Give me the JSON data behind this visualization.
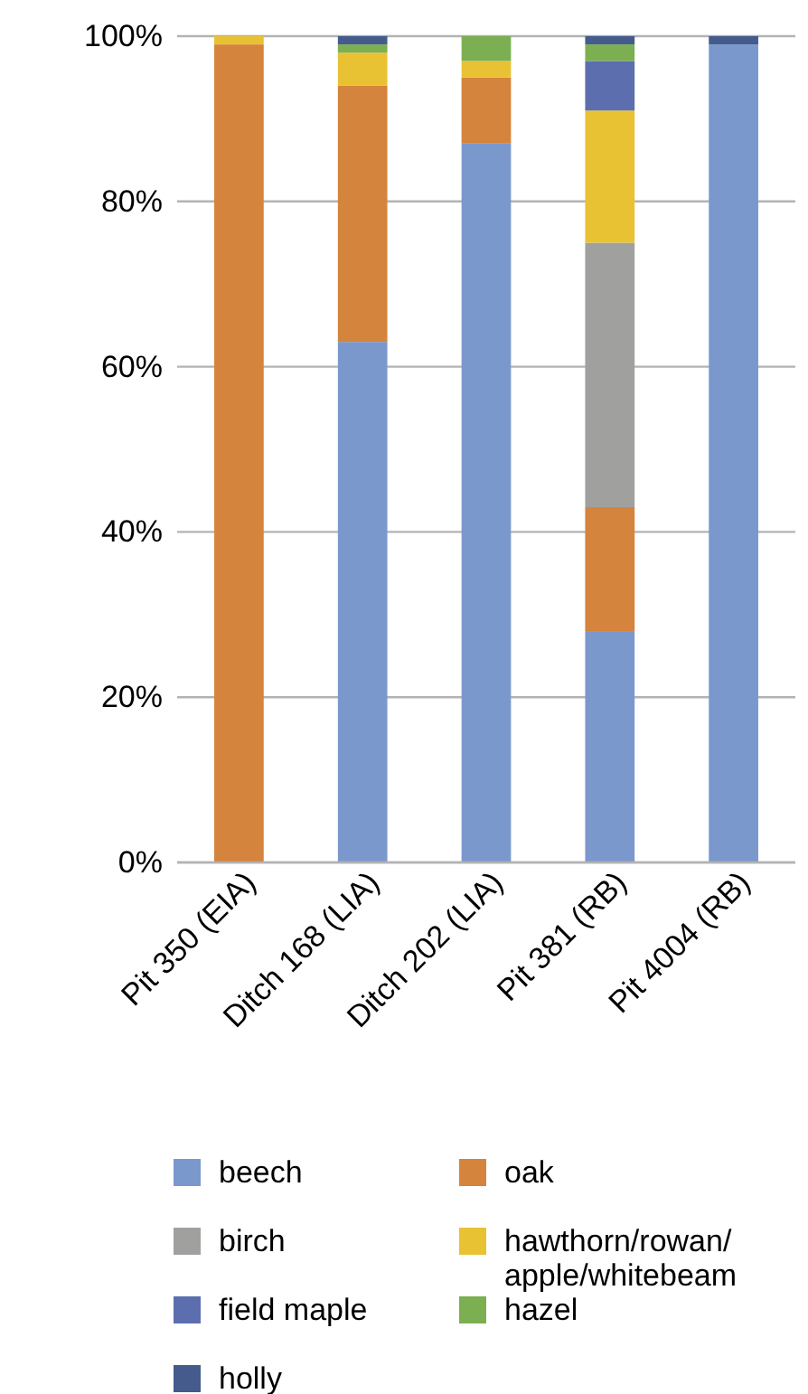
{
  "chart_data": {
    "type": "bar",
    "stacked": true,
    "categories": [
      "Pit 350 (EIA)",
      "Ditch 168 (LIA)",
      "Ditch 202 (LIA)",
      "Pit 381 (RB)",
      "Pit 4004 (RB)"
    ],
    "series": [
      {
        "name": "beech",
        "color": "#7b98cd",
        "values": [
          0,
          63,
          87,
          28,
          99
        ]
      },
      {
        "name": "oak",
        "color": "#d4843c",
        "values": [
          99,
          31,
          8,
          15,
          0
        ]
      },
      {
        "name": "birch",
        "color": "#a0a09f",
        "values": [
          0,
          0,
          0,
          32,
          0
        ]
      },
      {
        "name": "hawthorn/rowan/apple/whitebeam",
        "color": "#e8c233",
        "values": [
          1,
          4,
          2,
          16,
          0
        ]
      },
      {
        "name": "field maple",
        "color": "#5d6eae",
        "values": [
          0,
          0,
          0,
          6,
          0
        ]
      },
      {
        "name": "hazel",
        "color": "#7caf52",
        "values": [
          0,
          1,
          3,
          2,
          0
        ]
      },
      {
        "name": "holly",
        "color": "#445b8c",
        "values": [
          0,
          1,
          0,
          1,
          1
        ]
      }
    ],
    "ylim": [
      0,
      100
    ],
    "yticks": [
      {
        "value": 0,
        "label": "0%"
      },
      {
        "value": 20,
        "label": "20%"
      },
      {
        "value": 40,
        "label": "40%"
      },
      {
        "value": 60,
        "label": "60%"
      },
      {
        "value": 80,
        "label": "80%"
      },
      {
        "value": 100,
        "label": "100%"
      }
    ],
    "grid": "y",
    "legend": "bottom"
  }
}
